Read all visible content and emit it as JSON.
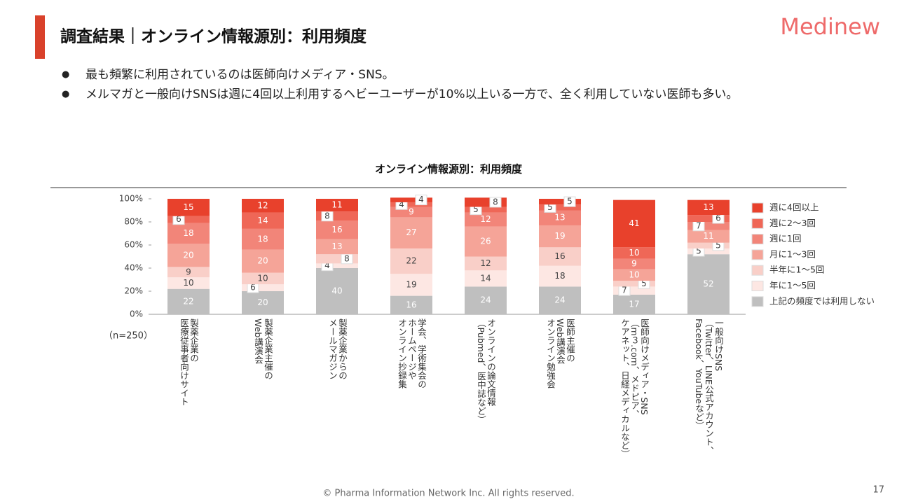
{
  "slide": {
    "title": "調査結果｜オンライン情報源別：利用頻度",
    "logo": "Medinew",
    "bullets": [
      "最も頻繁に利用されているのは医師向けメディア・SNS。",
      "メルマガと一般向けSNSは週に4回以上利用するヘビーユーザーが10%以上いる一方で、全く利用していない医師も多い。"
    ],
    "note": "（n=250）",
    "footer": "© Pharma Information Network Inc.  All rights reserved.",
    "page_number": "17"
  },
  "chart_data": {
    "type": "stacked_bar",
    "title": "オンライン情報源別：利用頻度",
    "categories": [
      "製薬企業の\n医療従事者向けサイト",
      "製薬企業主催の\nWeb講演会",
      "製薬企業からの\nメールマガジン",
      "学会、学術集会の\nホームページや\nオンライン抄録集",
      "オンラインの論文情報\n（Pubmed、医中誌など）",
      "医師主催の\nWeb講演会\nオンライン勉強会",
      "医師向けメディア・SNS\n（m３.com、メドピア、\nケアネット、日経メディカルなど）",
      "一般向けSNS\n（Twitter、LINE公式アカウント、\nFacebook、YouTubeなど）"
    ],
    "series": [
      {
        "name": "上記の頻度では利用しない",
        "color": "#bfbfbf",
        "values": [
          22,
          20,
          40,
          16,
          24,
          24,
          17,
          52
        ]
      },
      {
        "name": "年に1〜5回",
        "color": "#fde7e3",
        "values": [
          10,
          6,
          4,
          19,
          14,
          18,
          7,
          5
        ]
      },
      {
        "name": "半年に1〜5回",
        "color": "#f9cfc8",
        "values": [
          9,
          10,
          8,
          22,
          12,
          16,
          5,
          5
        ]
      },
      {
        "name": "月に1〜3回",
        "color": "#f5a498",
        "values": [
          20,
          20,
          13,
          27,
          26,
          19,
          10,
          11
        ]
      },
      {
        "name": "週に1回",
        "color": "#f28579",
        "values": [
          18,
          18,
          16,
          9,
          12,
          13,
          9,
          7
        ]
      },
      {
        "name": "週に2〜3回",
        "color": "#ef6757",
        "values": [
          6,
          14,
          8,
          4,
          5,
          5,
          10,
          6
        ]
      },
      {
        "name": "週に4回以上",
        "color": "#e8412c",
        "values": [
          15,
          12,
          11,
          4,
          8,
          5,
          41,
          13
        ]
      }
    ],
    "ylim": [
      0,
      100
    ],
    "yticks": [
      {
        "value": 0,
        "label": "0%"
      },
      {
        "value": 20,
        "label": "20%"
      },
      {
        "value": 40,
        "label": "40%"
      },
      {
        "value": 60,
        "label": "60%"
      },
      {
        "value": 80,
        "label": "80%"
      },
      {
        "value": 100,
        "label": "100%"
      }
    ]
  }
}
